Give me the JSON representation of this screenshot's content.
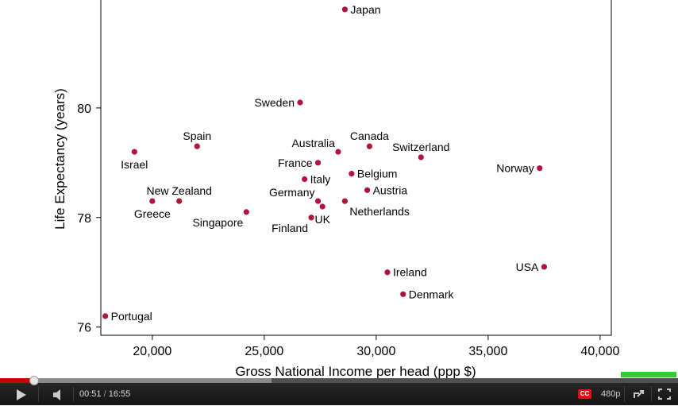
{
  "player": {
    "current_time": "00:51",
    "separator": "/",
    "duration": "16:55",
    "played_fraction": 0.05,
    "buffered_fraction": 0.4,
    "cc_label": "CC",
    "quality": "480p",
    "colors": {
      "played": "#cc0000",
      "marker": "#33cc33",
      "cc": "#dd1111"
    },
    "icons": [
      "play-icon",
      "volume-icon",
      "popout-icon",
      "fullscreen-icon"
    ]
  },
  "chart_data": {
    "type": "scatter",
    "xlabel": "Gross National Income per head (ppp $)",
    "ylabel": "Life Expectancy (years)",
    "xlim": [
      17700,
      40500
    ],
    "ylim": [
      75.85,
      82
    ],
    "x_ticks": [
      20000,
      25000,
      30000,
      35000,
      40000
    ],
    "x_tick_labels": [
      "20,000",
      "25,000",
      "30,000",
      "35,000",
      "40,000"
    ],
    "y_ticks": [
      76,
      78,
      80
    ],
    "y_tick_labels": [
      "76",
      "78",
      "80"
    ],
    "marker_color": "#b0143c",
    "points": [
      {
        "label": "Japan",
        "x": 28600,
        "y": 81.8,
        "pos": "right"
      },
      {
        "label": "Sweden",
        "x": 26600,
        "y": 80.1,
        "pos": "left"
      },
      {
        "label": "Spain",
        "x": 22000,
        "y": 79.3,
        "pos": "above"
      },
      {
        "label": "Israel",
        "x": 19200,
        "y": 79.2,
        "pos": "below"
      },
      {
        "label": "Canada",
        "x": 29700,
        "y": 79.3,
        "pos": "above"
      },
      {
        "label": "Australia",
        "x": 28300,
        "y": 79.2,
        "pos": "aboveleft"
      },
      {
        "label": "Switzerland",
        "x": 32000,
        "y": 79.1,
        "pos": "above"
      },
      {
        "label": "France",
        "x": 27400,
        "y": 79.0,
        "pos": "left"
      },
      {
        "label": "Norway",
        "x": 37300,
        "y": 78.9,
        "pos": "left"
      },
      {
        "label": "Belgium",
        "x": 28900,
        "y": 78.8,
        "pos": "right"
      },
      {
        "label": "Italy",
        "x": 26800,
        "y": 78.7,
        "pos": "right"
      },
      {
        "label": "Austria",
        "x": 29600,
        "y": 78.5,
        "pos": "right"
      },
      {
        "label": "Germany",
        "x": 27400,
        "y": 78.3,
        "pos": "aboveleft"
      },
      {
        "label": "Netherlands",
        "x": 28600,
        "y": 78.3,
        "pos": "belowright"
      },
      {
        "label": "New Zealand",
        "x": 21200,
        "y": 78.3,
        "pos": "above"
      },
      {
        "label": "Greece",
        "x": 20000,
        "y": 78.3,
        "pos": "below"
      },
      {
        "label": "UK",
        "x": 27600,
        "y": 78.2,
        "pos": "below"
      },
      {
        "label": "Singapore",
        "x": 24200,
        "y": 78.1,
        "pos": "belowleft"
      },
      {
        "label": "Finland",
        "x": 27100,
        "y": 78.0,
        "pos": "belowleft"
      },
      {
        "label": "Ireland",
        "x": 30500,
        "y": 77.0,
        "pos": "right"
      },
      {
        "label": "USA",
        "x": 37500,
        "y": 77.1,
        "pos": "left"
      },
      {
        "label": "Denmark",
        "x": 31200,
        "y": 76.6,
        "pos": "right"
      },
      {
        "label": "Portugal",
        "x": 17900,
        "y": 76.2,
        "pos": "right"
      }
    ]
  }
}
